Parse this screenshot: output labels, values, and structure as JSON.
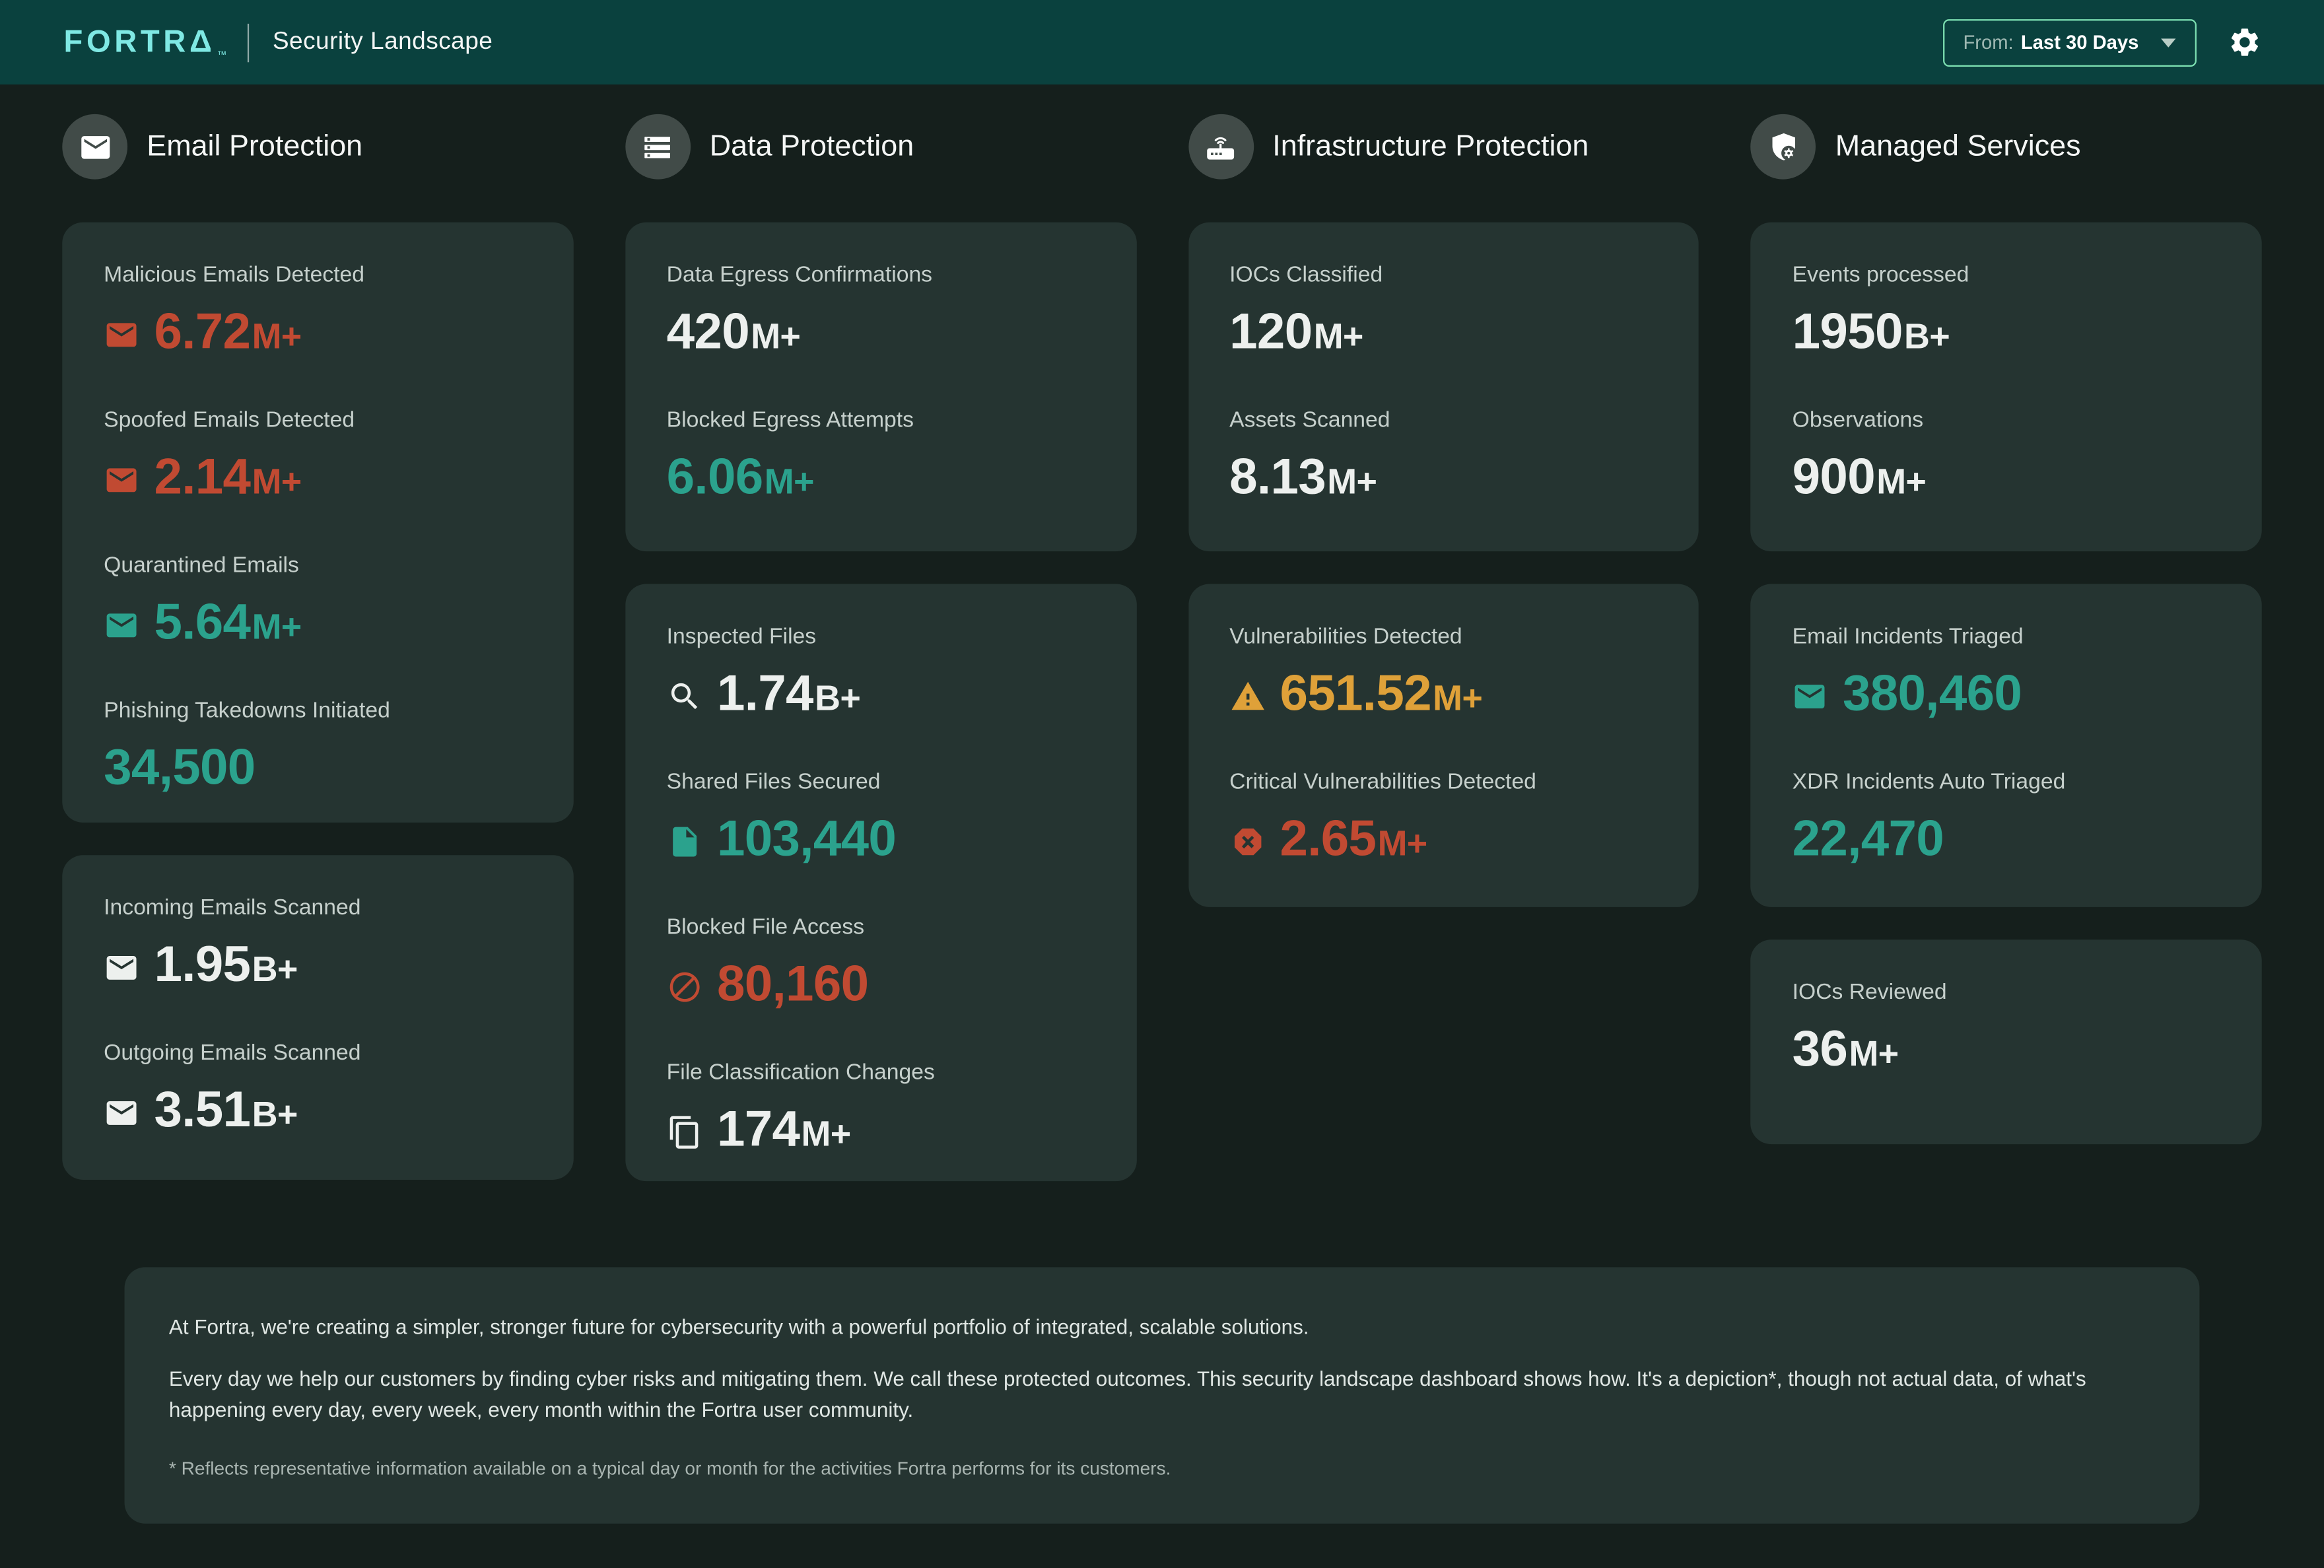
{
  "header": {
    "logo": "FORTRA",
    "logo_tm": "™",
    "title": "Security Landscape",
    "filter_prefix": "From:",
    "filter_value": "Last 30 Days",
    "settings_icon": "settings-gear-icon"
  },
  "colors": {
    "header_bg": "#0a413e",
    "page_bg": "#151f1c",
    "card_bg": "#253431",
    "logo_cyan": "#7fe9e4",
    "teal": "#2ba28d",
    "red": "#c14a32",
    "orange": "#dfa139",
    "dropdown_border": "#7de0b2"
  },
  "columns": [
    {
      "title": "Email Protection",
      "icon": "email-circle-icon",
      "cards": [
        {
          "stats": [
            {
              "label": "Malicious Emails Detected",
              "value": "6.72",
              "suffix": "M+",
              "icon": "email",
              "color": "red"
            },
            {
              "label": "Spoofed Emails Detected",
              "value": "2.14",
              "suffix": "M+",
              "icon": "email",
              "color": "red"
            },
            {
              "label": "Quarantined Emails",
              "value": "5.64",
              "suffix": "M+",
              "icon": "email",
              "color": "teal"
            },
            {
              "label": "Phishing Takedowns Initiated",
              "value": "34,500",
              "suffix": "",
              "icon": null,
              "color": "teal"
            }
          ]
        },
        {
          "stats": [
            {
              "label": "Incoming Emails Scanned",
              "value": "1.95",
              "suffix": "B+",
              "icon": "email",
              "color": "white"
            },
            {
              "label": "Outgoing Emails Scanned",
              "value": "3.51",
              "suffix": "B+",
              "icon": "email",
              "color": "white"
            }
          ]
        }
      ]
    },
    {
      "title": "Data Protection",
      "icon": "list-circle-icon",
      "cards": [
        {
          "stats": [
            {
              "label": "Data Egress Confirmations",
              "value": "420",
              "suffix": "M+",
              "icon": null,
              "color": "white"
            },
            {
              "label": "Blocked Egress Attempts",
              "value": "6.06",
              "suffix": "M+",
              "icon": null,
              "color": "teal"
            }
          ]
        },
        {
          "stats": [
            {
              "label": "Inspected Files",
              "value": "1.74",
              "suffix": "B+",
              "icon": "search",
              "color": "white"
            },
            {
              "label": "Shared Files Secured",
              "value": "103,440",
              "suffix": "",
              "icon": "file",
              "color": "teal"
            },
            {
              "label": "Blocked File Access",
              "value": "80,160",
              "suffix": "",
              "icon": "block",
              "color": "red"
            },
            {
              "label": "File Classification Changes",
              "value": "174",
              "suffix": "M+",
              "icon": "copy",
              "color": "white"
            }
          ]
        }
      ]
    },
    {
      "title": "Infrastructure Protection",
      "icon": "router-circle-icon",
      "cards": [
        {
          "stats": [
            {
              "label": "IOCs Classified",
              "value": "120",
              "suffix": "M+",
              "icon": null,
              "color": "white"
            },
            {
              "label": "Assets Scanned",
              "value": "8.13",
              "suffix": "M+",
              "icon": null,
              "color": "white"
            }
          ]
        },
        {
          "stats": [
            {
              "label": "Vulnerabilities Detected",
              "value": "651.52",
              "suffix": "M+",
              "icon": "warning",
              "color": "orange"
            },
            {
              "label": "Critical Vulnerabilities Detected",
              "value": "2.65",
              "suffix": "M+",
              "icon": "cancel",
              "color": "red"
            }
          ]
        }
      ]
    },
    {
      "title": "Managed Services",
      "icon": "shield-gear-circle-icon",
      "cards": [
        {
          "stats": [
            {
              "label": "Events processed",
              "value": "1950",
              "suffix": "B+",
              "icon": null,
              "color": "white"
            },
            {
              "label": "Observations",
              "value": "900",
              "suffix": "M+",
              "icon": null,
              "color": "white"
            }
          ]
        },
        {
          "stats": [
            {
              "label": "Email Incidents Triaged",
              "value": "380,460",
              "suffix": "",
              "icon": "email",
              "color": "teal"
            },
            {
              "label": "XDR Incidents Auto Triaged",
              "value": "22,470",
              "suffix": "",
              "icon": null,
              "color": "teal"
            }
          ]
        },
        {
          "stats": [
            {
              "label": "IOCs Reviewed",
              "value": "36",
              "suffix": "M+",
              "icon": null,
              "color": "white"
            }
          ]
        }
      ]
    }
  ],
  "footer": {
    "paragraphs": [
      "At Fortra, we're creating a simpler, stronger future for cybersecurity with a powerful portfolio of integrated, scalable solutions.",
      "Every day we help our customers by finding cyber risks and mitigating them. We call these protected outcomes. This security landscape dashboard shows how. It's a depiction*, though not actual data, of what's happening every day, every week, every month within the Fortra user community."
    ],
    "footnote": "* Reflects representative information available on a typical day or month for the activities Fortra performs for its customers."
  }
}
